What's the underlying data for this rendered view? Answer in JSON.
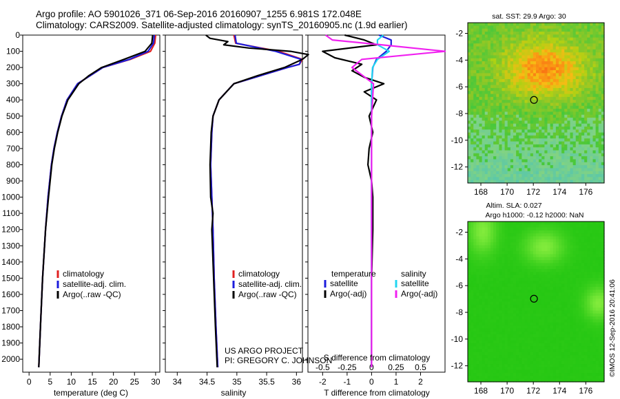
{
  "header": {
    "line1": "Argo profile: AO 5901026_371 06-Sep-2016 20160907_1255 6.981S 172.048E",
    "line2": "Climatology: CARS2009. Satellite-adjusted climatology: synTS_20160905.nc (1.9d earlier)"
  },
  "side_note": "©IMOS 12-Sep-2016 20:41:06",
  "credit": {
    "line1": "US ARGO PROJECT",
    "line2": "PI: GREGORY C. JOHNSON"
  },
  "colors": {
    "climatology": "#e02020",
    "satellite": "#1c1cdc",
    "argo": "#000000",
    "salinity_satellite": "#22d6f0",
    "salinity_argo": "#f020f0"
  },
  "chart_data": [
    {
      "id": "temperature",
      "type": "line",
      "xlabel": "temperature (deg C)",
      "ylim": [
        2080,
        0
      ],
      "xlim": [
        -1.5,
        31
      ],
      "xticks": [
        0,
        5,
        10,
        15,
        20,
        25,
        30
      ],
      "yticks": [
        0,
        100,
        200,
        300,
        400,
        500,
        600,
        700,
        800,
        900,
        1000,
        1100,
        1200,
        1300,
        1400,
        1500,
        1600,
        1700,
        1800,
        1900,
        2000
      ],
      "legend": [
        "climatology",
        "satellite-adj. clim.",
        "Argo(..raw -QC)"
      ],
      "series": [
        {
          "name": "climatology",
          "color": "#e02020",
          "depth": [
            0,
            50,
            100,
            150,
            200,
            250,
            300,
            400,
            500,
            600,
            700,
            800,
            1000,
            1200,
            1500,
            1800,
            2050
          ],
          "values": [
            30,
            29.8,
            28.8,
            24,
            17.5,
            14.5,
            11.5,
            9,
            7.7,
            6.7,
            5.9,
            5.3,
            4.5,
            3.9,
            3.2,
            2.7,
            2.3
          ]
        },
        {
          "name": "satellite-adj. clim.",
          "color": "#1c1cdc",
          "depth": [
            0,
            50,
            100,
            150,
            200,
            250,
            300,
            400,
            500,
            600,
            700,
            800,
            1000,
            1200,
            1500,
            1800,
            2050
          ],
          "values": [
            29.7,
            29.5,
            28.2,
            23.8,
            17.5,
            14.5,
            11.5,
            9,
            7.7,
            6.7,
            5.9,
            5.3,
            4.5,
            3.9,
            3.2,
            2.7,
            2.3
          ]
        },
        {
          "name": "Argo(..raw -QC)",
          "color": "#000000",
          "depth": [
            0,
            50,
            100,
            150,
            200,
            250,
            300,
            400,
            500,
            600,
            700,
            800,
            1000,
            1200,
            1500,
            1800,
            2050
          ],
          "values": [
            29.3,
            29.1,
            27.5,
            22.5,
            17.2,
            14.2,
            11.8,
            9.2,
            7.8,
            6.8,
            6,
            5.4,
            4.6,
            3.9,
            3.2,
            2.7,
            2.3
          ]
        }
      ]
    },
    {
      "id": "salinity",
      "type": "line",
      "xlabel": "salinity",
      "ylim": [
        2080,
        0
      ],
      "xlim": [
        33.8,
        36.1
      ],
      "xticks": [
        34,
        34.5,
        35,
        35.5,
        36
      ],
      "legend": [
        "climatology",
        "satellite-adj. clim.",
        "Argo(..raw -QC)"
      ],
      "series": [
        {
          "name": "climatology",
          "color": "#e02020",
          "depth": [
            0,
            50,
            100,
            150,
            180,
            200,
            250,
            300,
            400,
            500,
            600,
            800,
            1000,
            1200,
            1500,
            1800,
            2050
          ],
          "values": [
            34.95,
            34.98,
            35.7,
            36.1,
            36.05,
            35.85,
            35.4,
            34.95,
            34.7,
            34.6,
            34.58,
            34.56,
            34.58,
            34.6,
            34.62,
            34.65,
            34.68
          ]
        },
        {
          "name": "satellite-adj. clim.",
          "color": "#1c1cdc",
          "depth": [
            0,
            50,
            100,
            150,
            180,
            200,
            250,
            300,
            400,
            500,
            600,
            800,
            1000,
            1200,
            1500,
            1800,
            2050
          ],
          "values": [
            34.97,
            34.99,
            35.65,
            36.08,
            36.05,
            35.85,
            35.4,
            34.95,
            34.7,
            34.6,
            34.58,
            34.56,
            34.58,
            34.6,
            34.62,
            34.65,
            34.68
          ]
        },
        {
          "name": "Argo(..raw -QC)",
          "color": "#000000",
          "depth": [
            0,
            20,
            40,
            60,
            80,
            100,
            120,
            150,
            200,
            250,
            300,
            400,
            500,
            600,
            800,
            1000,
            1100,
            1200,
            1500,
            1800,
            2050
          ],
          "values": [
            34.48,
            34.55,
            34.85,
            34.78,
            35.2,
            35.9,
            36.2,
            36.1,
            35.8,
            35.35,
            34.95,
            34.7,
            34.6,
            34.57,
            34.55,
            34.56,
            34.6,
            34.58,
            34.61,
            34.64,
            34.67
          ]
        }
      ]
    },
    {
      "id": "differences",
      "type": "line",
      "xlabel": "T difference from climatology",
      "xlabel2": "S difference from climatology",
      "xlim": [
        -2.6,
        3
      ],
      "xticks": [
        -2,
        -1,
        0,
        1,
        2
      ],
      "xticks_top": [
        -0.5,
        -0.25,
        0,
        0.25,
        0.5
      ],
      "legend": {
        "temperature_heading": "temperature",
        "salinity_heading": "salinity",
        "temperature": [
          "satellite",
          "Argo(-adj)"
        ],
        "salinity": [
          "satellite",
          "Argo(-adj)"
        ]
      },
      "series": [
        {
          "name": "temperature satellite",
          "color": "#1c1cdc",
          "depth": [
            0,
            30,
            60,
            100,
            150,
            200,
            300,
            400,
            600,
            800,
            1000,
            1500,
            2050
          ],
          "values": [
            0.3,
            0.8,
            0.8,
            0.6,
            0.2,
            0.05,
            0.0,
            0.0,
            0.0,
            0.0,
            0.0,
            0.0,
            0.0
          ]
        },
        {
          "name": "temperature Argo(-adj)",
          "color": "#000000",
          "depth": [
            0,
            30,
            60,
            100,
            140,
            180,
            220,
            260,
            300,
            350,
            400,
            500,
            600,
            700,
            800,
            900,
            1000,
            1200,
            1500,
            1800,
            2050
          ],
          "values": [
            -1.1,
            -0.3,
            0.2,
            -2.0,
            -1.5,
            -0.4,
            -0.8,
            -0.3,
            0.5,
            -0.3,
            0.2,
            -0.1,
            0.05,
            -0.1,
            -0.15,
            0.0,
            0.05,
            0.05,
            0.0,
            0.0,
            0.0
          ]
        },
        {
          "name": "salinity satellite",
          "color": "#22d6f0",
          "depth": [
            0,
            30,
            60,
            100,
            150,
            200,
            300,
            500,
            800,
            1200,
            1600,
            2050
          ],
          "values": [
            0.12,
            0.06,
            0.06,
            0.18,
            0.06,
            0.01,
            0.0,
            0.0,
            0.0,
            0.0,
            0.0,
            0.0
          ]
        },
        {
          "name": "salinity Argo(-adj)",
          "color": "#f020f0",
          "depth": [
            0,
            30,
            60,
            100,
            150,
            200,
            300,
            500,
            800,
            1200,
            1600,
            2050
          ],
          "values": [
            -0.47,
            -0.4,
            0.1,
            0.75,
            -0.1,
            -0.2,
            0.02,
            0.0,
            0.0,
            0.0,
            0.0,
            0.0
          ]
        }
      ]
    },
    {
      "id": "sst-map",
      "type": "heatmap",
      "title": "sat. SST: 29.9 Argo: 30",
      "xticks": [
        168,
        170,
        172,
        174,
        176
      ],
      "yticks": [
        -2,
        -4,
        -6,
        -8,
        -10,
        -12
      ],
      "marker": {
        "lon": 172.048,
        "lat": -6.981
      }
    },
    {
      "id": "sla-map",
      "type": "heatmap",
      "title": "Altim. SLA: 0.027",
      "subtitle": "Argo h1000: -0.12 h2000: NaN",
      "xticks": [
        168,
        170,
        172,
        174,
        176
      ],
      "yticks": [
        -2,
        -4,
        -6,
        -8,
        -10,
        -12
      ],
      "marker": {
        "lon": 172.048,
        "lat": -6.981
      }
    }
  ]
}
